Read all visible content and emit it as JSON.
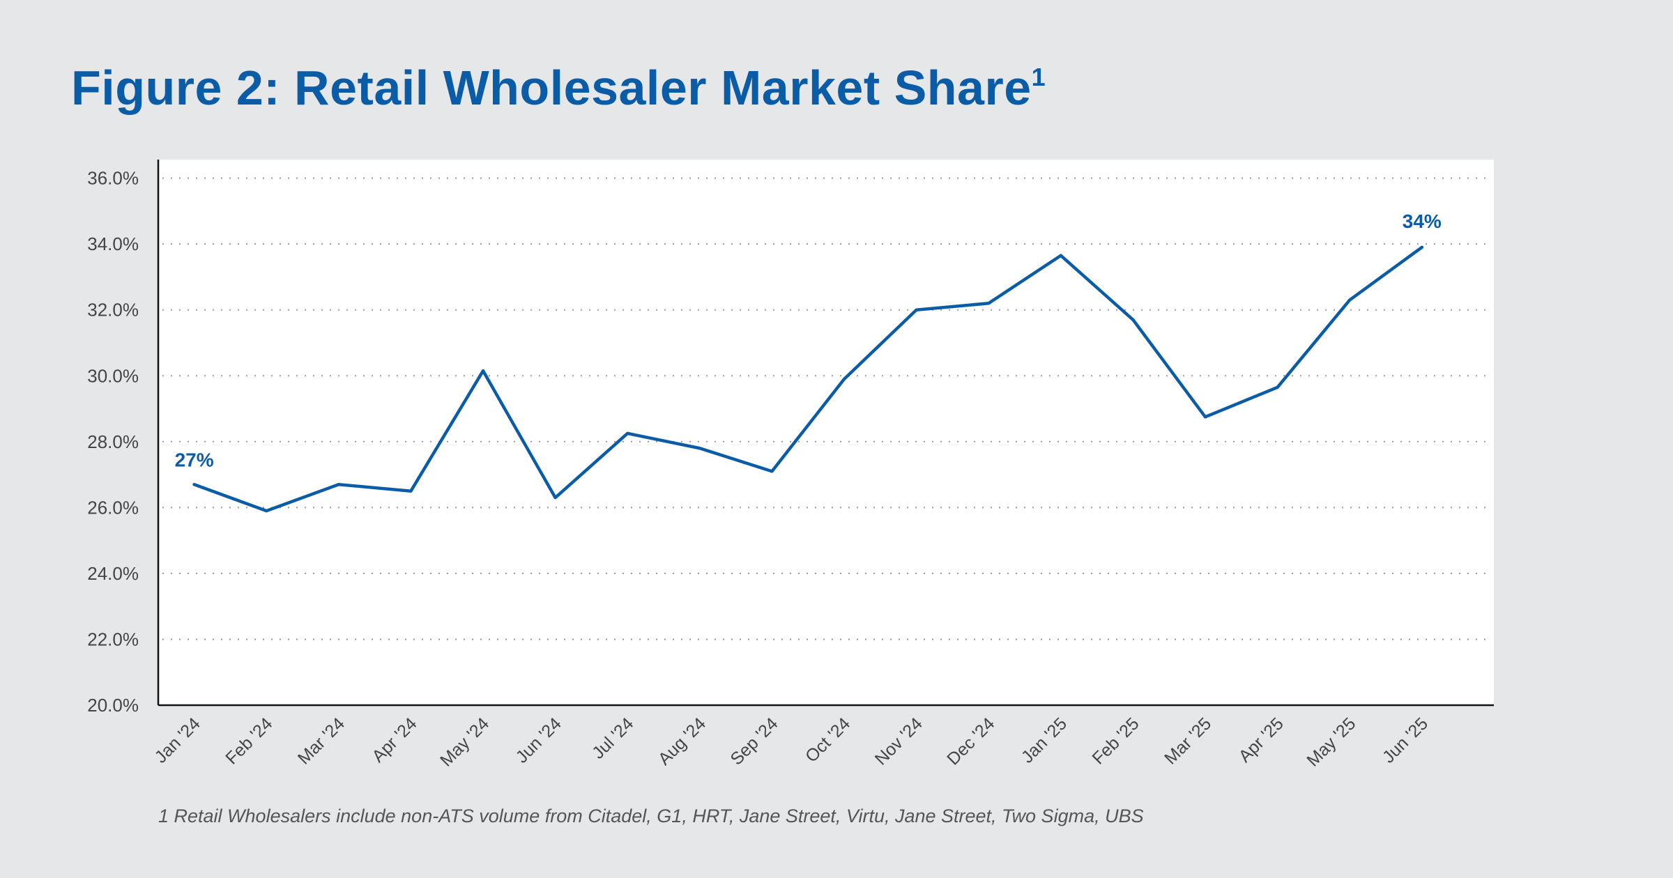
{
  "title": "Figure 2: Retail Wholesaler Market Share",
  "title_superscript": "1",
  "footnote": "1 Retail Wholesalers include non-ATS volume from Citadel, G1, HRT, Jane Street, Virtu, Jane Street, Two Sigma, UBS",
  "colors": {
    "line": "#0b5ca6",
    "background": "#e6e7e9",
    "plot": "#ffffff"
  },
  "chart_data": {
    "type": "line",
    "title": "Figure 2: Retail Wholesaler Market Share",
    "xlabel": "",
    "ylabel": "",
    "categories": [
      "Jan '24",
      "Feb '24",
      "Mar '24",
      "Apr '24",
      "May '24",
      "Jun '24",
      "Jul '24",
      "Aug '24",
      "Sep '24",
      "Oct '24",
      "Nov '24",
      "Dec '24",
      "Jan '25",
      "Feb '25",
      "Mar '25",
      "Apr '25",
      "May '25",
      "Jun '25"
    ],
    "series": [
      {
        "name": "Retail Wholesaler Market Share",
        "values": [
          26.7,
          25.9,
          26.7,
          26.5,
          30.15,
          26.3,
          28.25,
          27.8,
          27.1,
          29.9,
          32.0,
          32.2,
          33.65,
          31.7,
          28.75,
          29.65,
          32.3,
          33.9
        ]
      }
    ],
    "ylim": [
      20,
      36
    ],
    "yticks": [
      "20.0%",
      "22.0%",
      "24.0%",
      "26.0%",
      "28.0%",
      "30.0%",
      "32.0%",
      "34.0%",
      "36.0%"
    ],
    "grid": "horizontal-dotted",
    "annotations": [
      {
        "category": "Jan '24",
        "text": "27%"
      },
      {
        "category": "Jun '25",
        "text": "34%"
      }
    ]
  }
}
